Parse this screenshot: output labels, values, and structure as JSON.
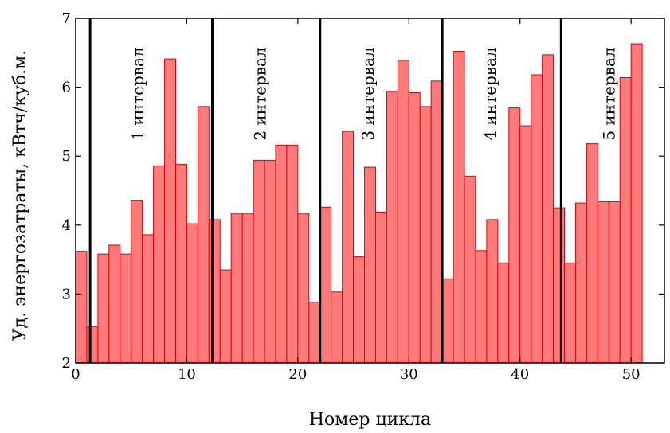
{
  "chart_data": {
    "type": "bar",
    "title": "",
    "xlabel": "Номер цикла",
    "ylabel": "Уд. энергозатраты, кВтч/куб.м.",
    "xlim": [
      0,
      53
    ],
    "ylim": [
      2,
      7
    ],
    "x_ticks": [
      0,
      10,
      20,
      30,
      40,
      50
    ],
    "y_ticks": [
      2,
      3,
      4,
      5,
      6,
      7
    ],
    "x_tick_labels": [
      "0",
      "10",
      "20",
      "30",
      "40",
      "50"
    ],
    "y_tick_labels": [
      "2",
      "3",
      "4",
      "5",
      "6",
      "7"
    ],
    "grid": false,
    "bar_color": "#ff7b7b",
    "bar_edge_color": "#e00000",
    "values": [
      3.62,
      2.53,
      3.58,
      3.71,
      3.58,
      4.36,
      3.86,
      4.86,
      6.41,
      4.88,
      4.02,
      5.72,
      4.08,
      3.35,
      4.17,
      4.17,
      4.94,
      4.94,
      5.16,
      5.16,
      4.17,
      2.88,
      4.26,
      3.03,
      5.36,
      3.54,
      4.84,
      4.19,
      5.94,
      6.39,
      5.92,
      5.72,
      6.09,
      3.22,
      6.52,
      4.71,
      3.63,
      4.08,
      3.45,
      5.7,
      5.44,
      6.18,
      6.47,
      4.25,
      3.45,
      4.32,
      5.18,
      4.34,
      4.34,
      6.14,
      6.63
    ],
    "intervals": [
      {
        "label": "1 интервал",
        "start": 1.3
      },
      {
        "label": "2 интервал",
        "start": 12.3
      },
      {
        "label": "3 интервал",
        "start": 22.0
      },
      {
        "label": "4 интервал",
        "start": 33.0
      },
      {
        "label": "5 интервал",
        "start": 43.7
      }
    ]
  }
}
